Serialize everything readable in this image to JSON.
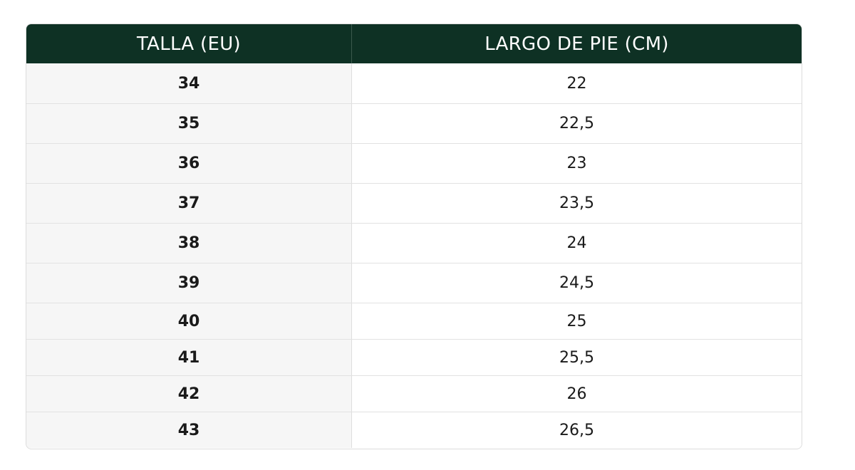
{
  "table": {
    "headers": {
      "size": "TALLA (EU)",
      "length": "LARGO DE PIE (CM)"
    },
    "rows": [
      {
        "size": "34",
        "length": "22"
      },
      {
        "size": "35",
        "length": "22,5"
      },
      {
        "size": "36",
        "length": "23"
      },
      {
        "size": "37",
        "length": "23,5"
      },
      {
        "size": "38",
        "length": "24"
      },
      {
        "size": "39",
        "length": "24,5"
      },
      {
        "size": "40",
        "length": "25"
      },
      {
        "size": "41",
        "length": "25,5"
      },
      {
        "size": "42",
        "length": "26"
      },
      {
        "size": "43",
        "length": "26,5"
      }
    ]
  },
  "colors": {
    "header_background": "#0e3124",
    "header_text": "#ffffff",
    "size_column_background": "#f6f6f6"
  }
}
